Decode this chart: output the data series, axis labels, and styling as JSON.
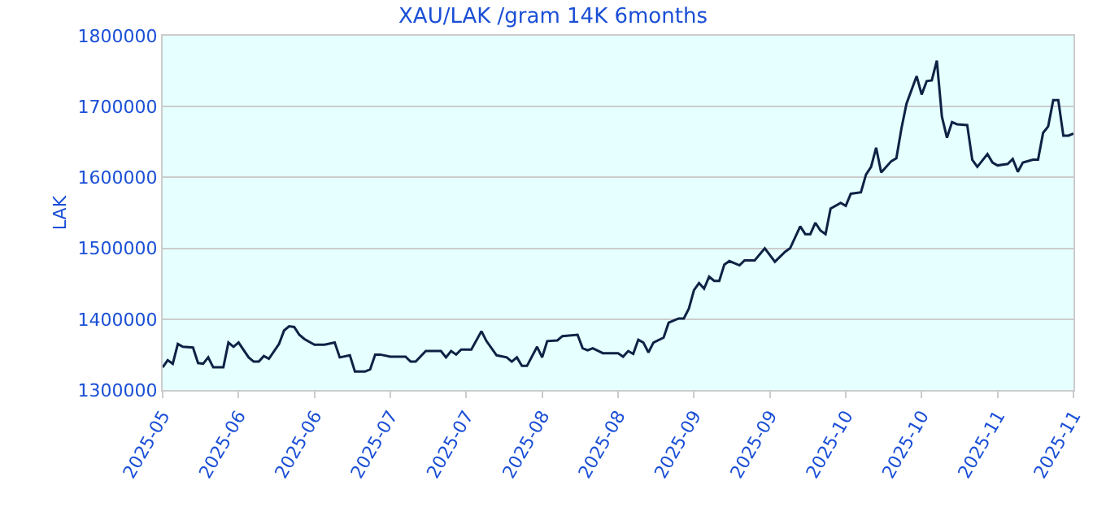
{
  "chart_data": {
    "type": "line",
    "title": "XAU/LAK /gram 14K 6months",
    "ylabel": "LAK",
    "x": [
      "2025-05-30",
      "2025-05-31",
      "2025-06-01",
      "2025-06-02",
      "2025-06-03",
      "2025-06-05",
      "2025-06-06",
      "2025-06-07",
      "2025-06-08",
      "2025-06-09",
      "2025-06-11",
      "2025-06-12",
      "2025-06-13",
      "2025-06-14",
      "2025-06-16",
      "2025-06-17",
      "2025-06-18",
      "2025-06-19",
      "2025-06-20",
      "2025-06-22",
      "2025-06-23",
      "2025-06-24",
      "2025-06-25",
      "2025-06-26",
      "2025-06-27",
      "2025-06-29",
      "2025-07-01",
      "2025-07-03",
      "2025-07-04",
      "2025-07-06",
      "2025-07-07",
      "2025-07-09",
      "2025-07-10",
      "2025-07-11",
      "2025-07-12",
      "2025-07-14",
      "2025-07-17",
      "2025-07-18",
      "2025-07-19",
      "2025-07-21",
      "2025-07-24",
      "2025-07-25",
      "2025-07-26",
      "2025-07-27",
      "2025-07-28",
      "2025-07-30",
      "2025-08-01",
      "2025-08-02",
      "2025-08-04",
      "2025-08-06",
      "2025-08-07",
      "2025-08-08",
      "2025-08-09",
      "2025-08-10",
      "2025-08-12",
      "2025-08-13",
      "2025-08-14",
      "2025-08-16",
      "2025-08-17",
      "2025-08-20",
      "2025-08-21",
      "2025-08-22",
      "2025-08-23",
      "2025-08-25",
      "2025-08-28",
      "2025-08-29",
      "2025-08-30",
      "2025-08-31",
      "2025-09-01",
      "2025-09-02",
      "2025-09-03",
      "2025-09-04",
      "2025-09-06",
      "2025-09-07",
      "2025-09-09",
      "2025-09-10",
      "2025-09-11",
      "2025-09-12",
      "2025-09-13",
      "2025-09-14",
      "2025-09-15",
      "2025-09-16",
      "2025-09-17",
      "2025-09-18",
      "2025-09-19",
      "2025-09-21",
      "2025-09-22",
      "2025-09-24",
      "2025-09-26",
      "2025-09-28",
      "2025-09-30",
      "2025-10-01",
      "2025-10-03",
      "2025-10-04",
      "2025-10-05",
      "2025-10-06",
      "2025-10-07",
      "2025-10-08",
      "2025-10-09",
      "2025-10-11",
      "2025-10-12",
      "2025-10-13",
      "2025-10-15",
      "2025-10-16",
      "2025-10-17",
      "2025-10-18",
      "2025-10-19",
      "2025-10-21",
      "2025-10-22",
      "2025-10-23",
      "2025-10-24",
      "2025-10-26",
      "2025-10-27",
      "2025-10-28",
      "2025-10-29",
      "2025-10-30",
      "2025-10-31",
      "2025-11-01",
      "2025-11-02",
      "2025-11-03",
      "2025-11-05",
      "2025-11-06",
      "2025-11-07",
      "2025-11-09",
      "2025-11-10",
      "2025-11-11",
      "2025-11-13",
      "2025-11-14",
      "2025-11-15",
      "2025-11-16",
      "2025-11-18",
      "2025-11-19",
      "2025-11-20",
      "2025-11-21",
      "2025-11-22",
      "2025-11-23",
      "2025-11-24",
      "2025-11-25",
      "2025-11-26"
    ],
    "series": [
      {
        "color": "#0d2244",
        "values": [
          1332000,
          1342000,
          1337000,
          1365000,
          1361000,
          1360000,
          1338000,
          1337000,
          1346000,
          1332000,
          1332000,
          1367000,
          1361000,
          1367000,
          1346000,
          1340000,
          1340000,
          1348000,
          1344000,
          1365000,
          1384000,
          1390000,
          1389000,
          1378000,
          1372000,
          1364000,
          1364000,
          1367000,
          1346000,
          1349000,
          1326000,
          1326000,
          1329000,
          1350000,
          1350000,
          1347000,
          1347000,
          1340000,
          1340000,
          1355000,
          1355000,
          1346000,
          1355000,
          1350000,
          1357000,
          1357000,
          1383000,
          1369000,
          1349000,
          1346000,
          1340000,
          1346000,
          1334000,
          1334000,
          1361000,
          1346000,
          1369000,
          1370000,
          1376000,
          1378000,
          1359000,
          1356000,
          1359000,
          1352000,
          1352000,
          1347000,
          1355000,
          1351000,
          1371000,
          1367000,
          1353000,
          1367000,
          1374000,
          1395000,
          1401000,
          1401000,
          1415000,
          1441000,
          1451000,
          1443000,
          1460000,
          1454000,
          1454000,
          1477000,
          1482000,
          1476000,
          1483000,
          1483000,
          1500000,
          1481000,
          1495000,
          1500000,
          1531000,
          1520000,
          1520000,
          1536000,
          1525000,
          1520000,
          1556000,
          1564000,
          1560000,
          1577000,
          1579000,
          1604000,
          1615000,
          1642000,
          1607000,
          1623000,
          1627000,
          1669000,
          1704000,
          1743000,
          1717000,
          1736000,
          1737000,
          1765000,
          1686000,
          1656000,
          1678000,
          1675000,
          1674000,
          1625000,
          1615000,
          1633000,
          1621000,
          1617000,
          1619000,
          1626000,
          1608000,
          1621000,
          1625000,
          1625000,
          1663000,
          1672000,
          1709000,
          1709000,
          1659000,
          1659000,
          1662000
        ]
      }
    ],
    "xlim": [
      "2025-05-30",
      "2025-11-26"
    ],
    "xticks": [
      {
        "value": "2025-05-30",
        "label": "2025-05"
      },
      {
        "value": "2025-06-14",
        "label": "2025-06"
      },
      {
        "value": "2025-06-29",
        "label": "2025-06"
      },
      {
        "value": "2025-07-14",
        "label": "2025-07"
      },
      {
        "value": "2025-07-29",
        "label": "2025-07"
      },
      {
        "value": "2025-08-13",
        "label": "2025-08"
      },
      {
        "value": "2025-08-28",
        "label": "2025-08"
      },
      {
        "value": "2025-09-12",
        "label": "2025-09"
      },
      {
        "value": "2025-09-27",
        "label": "2025-09"
      },
      {
        "value": "2025-10-12",
        "label": "2025-10"
      },
      {
        "value": "2025-10-27",
        "label": "2025-10"
      },
      {
        "value": "2025-11-11",
        "label": "2025-11"
      },
      {
        "value": "2025-11-26",
        "label": "2025-11"
      }
    ],
    "ylim": [
      1300000,
      1800000
    ],
    "yticks": [
      1300000,
      1400000,
      1500000,
      1600000,
      1700000,
      1800000
    ],
    "grid": "y",
    "marker": "none",
    "line_style": "solid"
  }
}
